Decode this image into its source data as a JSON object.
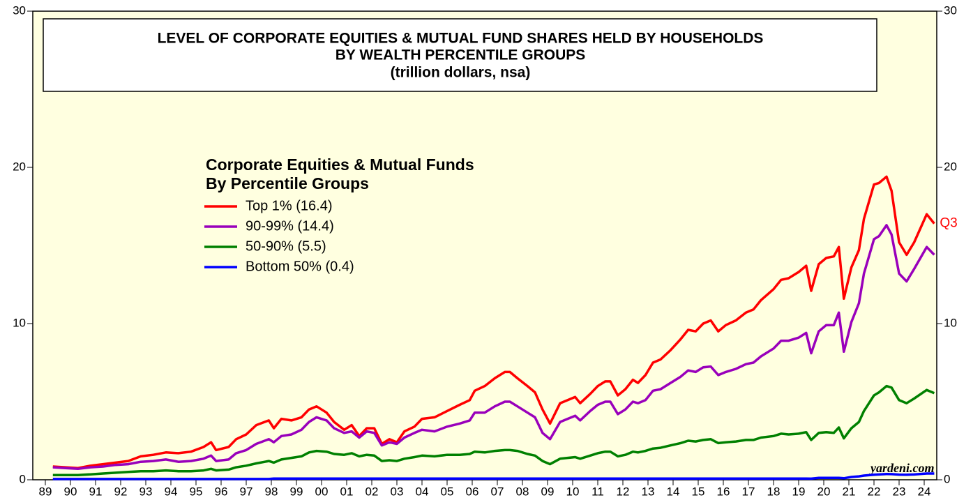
{
  "chart_data": {
    "type": "line",
    "title": "LEVEL OF CORPORATE EQUITIES & MUTUAL FUND SHARES HELD BY HOUSEHOLDS",
    "subtitle": "BY WEALTH PERCENTILE GROUPS",
    "unit_label": "(trillion dollars, nsa)",
    "legend_title": [
      "Corporate Equities & Mutual Funds",
      "By Percentile Groups"
    ],
    "annotations": [
      "Q3",
      "yardeni.com"
    ],
    "xlim": [
      1989,
      2025
    ],
    "xticks": [
      {
        "value": 1989.5,
        "label": "89"
      },
      {
        "value": 1990.5,
        "label": "90"
      },
      {
        "value": 1991.5,
        "label": "91"
      },
      {
        "value": 1992.5,
        "label": "92"
      },
      {
        "value": 1993.5,
        "label": "93"
      },
      {
        "value": 1994.5,
        "label": "94"
      },
      {
        "value": 1995.5,
        "label": "95"
      },
      {
        "value": 1996.5,
        "label": "96"
      },
      {
        "value": 1997.5,
        "label": "97"
      },
      {
        "value": 1998.5,
        "label": "98"
      },
      {
        "value": 1999.5,
        "label": "99"
      },
      {
        "value": 2000.5,
        "label": "00"
      },
      {
        "value": 2001.5,
        "label": "01"
      },
      {
        "value": 2002.5,
        "label": "02"
      },
      {
        "value": 2003.5,
        "label": "03"
      },
      {
        "value": 2004.5,
        "label": "04"
      },
      {
        "value": 2005.5,
        "label": "05"
      },
      {
        "value": 2006.5,
        "label": "06"
      },
      {
        "value": 2007.5,
        "label": "07"
      },
      {
        "value": 2008.5,
        "label": "08"
      },
      {
        "value": 2009.5,
        "label": "09"
      },
      {
        "value": 2010.5,
        "label": "10"
      },
      {
        "value": 2011.5,
        "label": "11"
      },
      {
        "value": 2012.5,
        "label": "12"
      },
      {
        "value": 2013.5,
        "label": "13"
      },
      {
        "value": 2014.5,
        "label": "14"
      },
      {
        "value": 2015.5,
        "label": "15"
      },
      {
        "value": 2016.5,
        "label": "16"
      },
      {
        "value": 2017.5,
        "label": "17"
      },
      {
        "value": 2018.5,
        "label": "18"
      },
      {
        "value": 2019.5,
        "label": "19"
      },
      {
        "value": 2020.5,
        "label": "20"
      },
      {
        "value": 2021.5,
        "label": "21"
      },
      {
        "value": 2022.5,
        "label": "22"
      },
      {
        "value": 2023.5,
        "label": "23"
      },
      {
        "value": 2024.5,
        "label": "24"
      }
    ],
    "ylim": [
      0,
      30
    ],
    "yticks": [
      0,
      10,
      20,
      30
    ],
    "x": [
      1989.8,
      1990.3,
      1990.8,
      1991.3,
      1991.8,
      1992.3,
      1992.8,
      1993.3,
      1993.8,
      1994.3,
      1994.8,
      1995.3,
      1995.8,
      1996.1,
      1996.3,
      1996.8,
      1997.1,
      1997.5,
      1997.9,
      1998.4,
      1998.6,
      1998.9,
      1999.3,
      1999.7,
      2000.0,
      2000.3,
      2000.7,
      2001.0,
      2001.4,
      2001.7,
      2002.0,
      2002.3,
      2002.6,
      2002.9,
      2003.2,
      2003.5,
      2003.8,
      2004.2,
      2004.5,
      2005.0,
      2005.5,
      2006.0,
      2006.4,
      2006.6,
      2007.0,
      2007.4,
      2007.8,
      2008.0,
      2008.3,
      2008.7,
      2009.0,
      2009.3,
      2009.6,
      2010.0,
      2010.3,
      2010.6,
      2010.8,
      2011.2,
      2011.5,
      2011.8,
      2012.0,
      2012.3,
      2012.6,
      2012.9,
      2013.1,
      2013.4,
      2013.7,
      2014.0,
      2014.4,
      2014.8,
      2015.1,
      2015.4,
      2015.7,
      2016.0,
      2016.3,
      2016.6,
      2017.0,
      2017.4,
      2017.7,
      2018.0,
      2018.5,
      2018.8,
      2019.1,
      2019.5,
      2019.8,
      2020.0,
      2020.3,
      2020.6,
      2020.9,
      2021.1,
      2021.3,
      2021.6,
      2021.9,
      2022.1,
      2022.5,
      2022.7,
      2023.0,
      2023.2,
      2023.5,
      2023.8,
      2024.1,
      2024.6,
      2024.9
    ],
    "series": [
      {
        "name": "Top 1% (16.4)",
        "color": "#ff0000",
        "values": [
          0.85,
          0.8,
          0.75,
          0.9,
          1.0,
          1.1,
          1.2,
          1.5,
          1.6,
          1.75,
          1.7,
          1.8,
          2.1,
          2.4,
          1.9,
          2.1,
          2.6,
          2.9,
          3.5,
          3.8,
          3.3,
          3.9,
          3.8,
          4.0,
          4.5,
          4.7,
          4.3,
          3.7,
          3.2,
          3.5,
          2.8,
          3.3,
          3.3,
          2.3,
          2.6,
          2.4,
          3.1,
          3.4,
          3.9,
          4.0,
          4.4,
          4.8,
          5.1,
          5.7,
          6.0,
          6.5,
          6.9,
          6.9,
          6.5,
          6.0,
          5.6,
          4.5,
          3.6,
          4.9,
          5.1,
          5.3,
          4.9,
          5.5,
          6.0,
          6.3,
          6.3,
          5.4,
          5.8,
          6.4,
          6.2,
          6.7,
          7.5,
          7.7,
          8.3,
          9.0,
          9.6,
          9.5,
          10.0,
          10.2,
          9.5,
          9.9,
          10.2,
          10.7,
          10.9,
          11.5,
          12.2,
          12.8,
          12.9,
          13.3,
          13.7,
          12.1,
          13.8,
          14.2,
          14.3,
          14.9,
          11.6,
          13.6,
          14.7,
          16.7,
          18.9,
          19.0,
          19.4,
          18.5,
          15.2,
          14.4,
          15.2,
          17.0,
          16.4
        ]
      },
      {
        "name": "90-99% (14.4)",
        "color": "#9900bb",
        "values": [
          0.8,
          0.75,
          0.7,
          0.8,
          0.85,
          0.95,
          1.0,
          1.15,
          1.2,
          1.3,
          1.15,
          1.2,
          1.35,
          1.55,
          1.2,
          1.3,
          1.7,
          1.9,
          2.3,
          2.6,
          2.4,
          2.8,
          2.9,
          3.2,
          3.7,
          4.0,
          3.8,
          3.3,
          3.0,
          3.1,
          2.7,
          3.1,
          3.0,
          2.2,
          2.4,
          2.3,
          2.7,
          3.0,
          3.2,
          3.1,
          3.4,
          3.6,
          3.8,
          4.3,
          4.3,
          4.7,
          5.0,
          5.0,
          4.7,
          4.3,
          4.0,
          3.0,
          2.6,
          3.7,
          3.9,
          4.1,
          3.8,
          4.4,
          4.8,
          5.0,
          5.0,
          4.2,
          4.5,
          5.0,
          4.9,
          5.1,
          5.7,
          5.8,
          6.2,
          6.6,
          7.0,
          6.9,
          7.2,
          7.25,
          6.7,
          6.9,
          7.1,
          7.4,
          7.5,
          7.9,
          8.4,
          8.9,
          8.9,
          9.1,
          9.4,
          8.1,
          9.5,
          9.9,
          9.9,
          10.7,
          8.2,
          10.1,
          11.3,
          13.2,
          15.4,
          15.6,
          16.3,
          15.7,
          13.2,
          12.7,
          13.5,
          14.9,
          14.4
        ]
      },
      {
        "name": "50-90% (5.5)",
        "color": "#008000",
        "values": [
          0.3,
          0.3,
          0.3,
          0.35,
          0.4,
          0.45,
          0.5,
          0.55,
          0.55,
          0.6,
          0.55,
          0.55,
          0.6,
          0.7,
          0.6,
          0.65,
          0.8,
          0.9,
          1.05,
          1.2,
          1.1,
          1.3,
          1.4,
          1.5,
          1.75,
          1.85,
          1.8,
          1.65,
          1.6,
          1.7,
          1.5,
          1.6,
          1.55,
          1.2,
          1.25,
          1.2,
          1.35,
          1.45,
          1.55,
          1.5,
          1.6,
          1.6,
          1.65,
          1.8,
          1.75,
          1.85,
          1.9,
          1.9,
          1.85,
          1.65,
          1.55,
          1.2,
          1.0,
          1.35,
          1.4,
          1.45,
          1.35,
          1.55,
          1.7,
          1.8,
          1.8,
          1.5,
          1.6,
          1.8,
          1.75,
          1.85,
          2.0,
          2.05,
          2.2,
          2.35,
          2.5,
          2.45,
          2.55,
          2.6,
          2.35,
          2.4,
          2.45,
          2.55,
          2.55,
          2.7,
          2.8,
          2.95,
          2.9,
          2.95,
          3.05,
          2.55,
          3.0,
          3.05,
          3.0,
          3.35,
          2.65,
          3.3,
          3.7,
          4.4,
          5.4,
          5.6,
          6.0,
          5.9,
          5.1,
          4.9,
          5.2,
          5.75,
          5.55
        ]
      },
      {
        "name": "Bottom 50% (0.4)",
        "color": "#0000ff",
        "values": [
          0.05,
          0.05,
          0.05,
          0.05,
          0.05,
          0.05,
          0.05,
          0.05,
          0.05,
          0.05,
          0.05,
          0.05,
          0.05,
          0.05,
          0.05,
          0.05,
          0.05,
          0.05,
          0.05,
          0.05,
          0.08,
          0.08,
          0.08,
          0.08,
          0.08,
          0.08,
          0.08,
          0.08,
          0.08,
          0.08,
          0.08,
          0.08,
          0.08,
          0.08,
          0.08,
          0.08,
          0.08,
          0.08,
          0.08,
          0.08,
          0.08,
          0.08,
          0.08,
          0.08,
          0.08,
          0.08,
          0.08,
          0.08,
          0.08,
          0.08,
          0.08,
          0.08,
          0.08,
          0.08,
          0.08,
          0.08,
          0.08,
          0.08,
          0.08,
          0.08,
          0.08,
          0.08,
          0.08,
          0.08,
          0.08,
          0.08,
          0.08,
          0.08,
          0.08,
          0.08,
          0.08,
          0.08,
          0.08,
          0.08,
          0.08,
          0.08,
          0.08,
          0.08,
          0.08,
          0.08,
          0.08,
          0.08,
          0.08,
          0.08,
          0.08,
          0.07,
          0.12,
          0.12,
          0.12,
          0.12,
          0.1,
          0.18,
          0.22,
          0.27,
          0.32,
          0.34,
          0.37,
          0.36,
          0.33,
          0.32,
          0.34,
          0.4,
          0.4
        ]
      }
    ]
  }
}
